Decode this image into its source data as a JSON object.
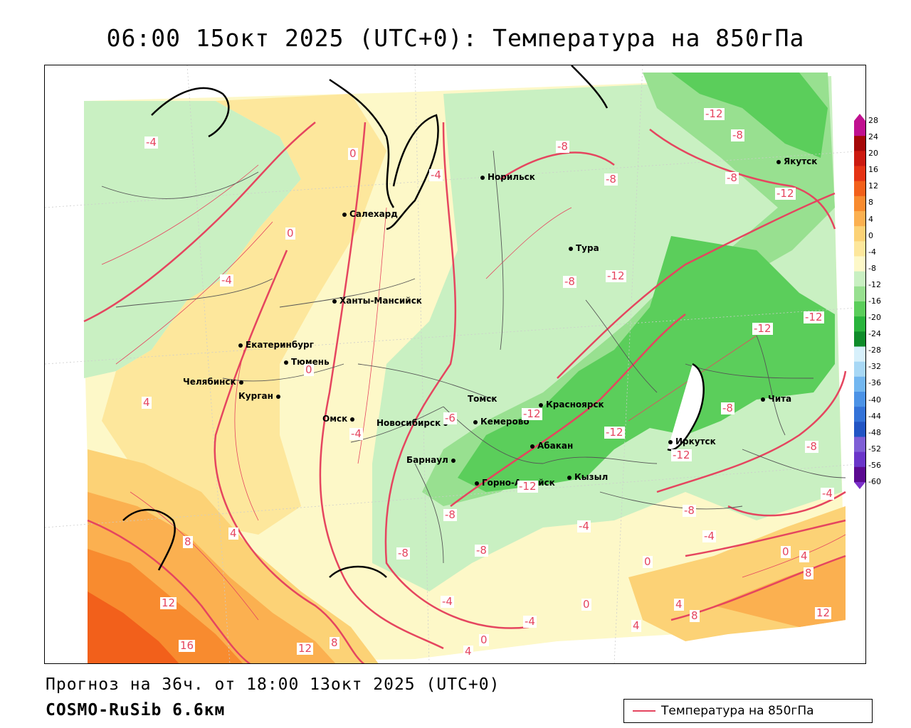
{
  "title": "06:00 15окт 2025 (UTC+0): Температура на 850гПа",
  "forecast_line": "Прогноз на 36ч. от 18:00 13окт 2025 (UTC+0)",
  "model_line": "COSMO-RuSib 6.6км",
  "legend": {
    "label": "Температура на 850гПа",
    "line_color": "#e5455f"
  },
  "colors": {
    "contour": "#e5455f",
    "scale": [
      "#5b0a91",
      "#6a35c9",
      "#7f5fd6",
      "#2255c4",
      "#3473d8",
      "#4c93e6",
      "#73b7f0",
      "#a8d8f5",
      "#d7f0fb",
      "#0f8c2a",
      "#29b43c",
      "#5bce5b",
      "#98e090",
      "#c9f0c2",
      "#fdf8c8",
      "#fde79c",
      "#fcd276",
      "#fbb050",
      "#f88b2f",
      "#f2601b",
      "#e53314",
      "#cc1a10",
      "#a50808",
      "#c0108f"
    ]
  },
  "scale_ticks": [
    "28",
    "24",
    "20",
    "16",
    "12",
    "8",
    "4",
    "0",
    "-4",
    "-8",
    "-12",
    "-16",
    "-20",
    "-24",
    "-28",
    "-32",
    "-36",
    "-40",
    "-44",
    "-48",
    "-52",
    "-56",
    "-60"
  ],
  "cities": [
    {
      "name": "Норильск"
    },
    {
      "name": "Якутск"
    },
    {
      "name": "Салехард"
    },
    {
      "name": "Тура"
    },
    {
      "name": "Ханты-Мансийск"
    },
    {
      "name": "Екатеринбург"
    },
    {
      "name": "Тюмень"
    },
    {
      "name": "Челябинск"
    },
    {
      "name": "Курган"
    },
    {
      "name": "Омск"
    },
    {
      "name": "Томск"
    },
    {
      "name": "Красноярск"
    },
    {
      "name": "Новосибирск"
    },
    {
      "name": "Кемерово"
    },
    {
      "name": "Абакан"
    },
    {
      "name": "Барнаул"
    },
    {
      "name": "Горно-Алтайск"
    },
    {
      "name": "Кызыл"
    },
    {
      "name": "Иркутск"
    },
    {
      "name": "Чита"
    }
  ],
  "contour_labels": [
    "-12",
    "-8",
    "-8",
    "-8",
    "-12",
    "-4",
    "0",
    "-4",
    "-8",
    "-12",
    "0",
    "-4",
    "-12",
    "-12",
    "0",
    "4",
    "-8",
    "-6",
    "-12",
    "-4",
    "-12",
    "-12",
    "-8",
    "-4",
    "-8",
    "-8",
    "-8",
    "-4",
    "-8",
    "-4",
    "8",
    "4",
    "0",
    "4",
    "-4",
    "0",
    "12",
    "0",
    "-4",
    "4",
    "4",
    "8",
    "12",
    "16",
    "12",
    "8",
    "4",
    "0",
    "8",
    "-8",
    "-12"
  ]
}
